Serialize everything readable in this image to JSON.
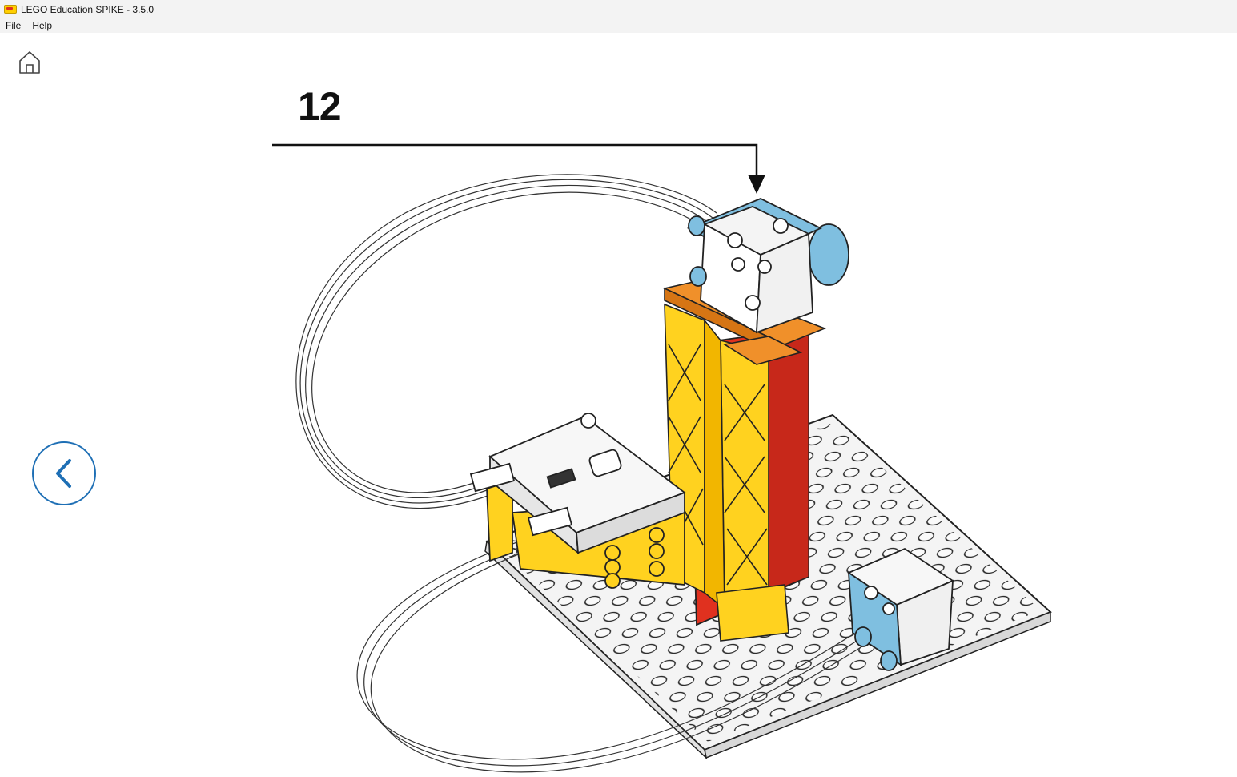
{
  "window": {
    "title": "LEGO Education SPIKE - 3.5.0"
  },
  "menu": {
    "items": [
      "File",
      "Help"
    ]
  },
  "nav": {
    "home_icon": "home-icon",
    "back_icon": "chevron-left-icon"
  },
  "instruction": {
    "step": "12"
  },
  "colors": {
    "accent": "#1e6fb5",
    "brick_yellow": "#ffd21f",
    "brick_red": "#e0311f",
    "brick_orange": "#f0902a",
    "brick_blue": "#7fbfe0",
    "baseplate": "#f4f4f4"
  }
}
